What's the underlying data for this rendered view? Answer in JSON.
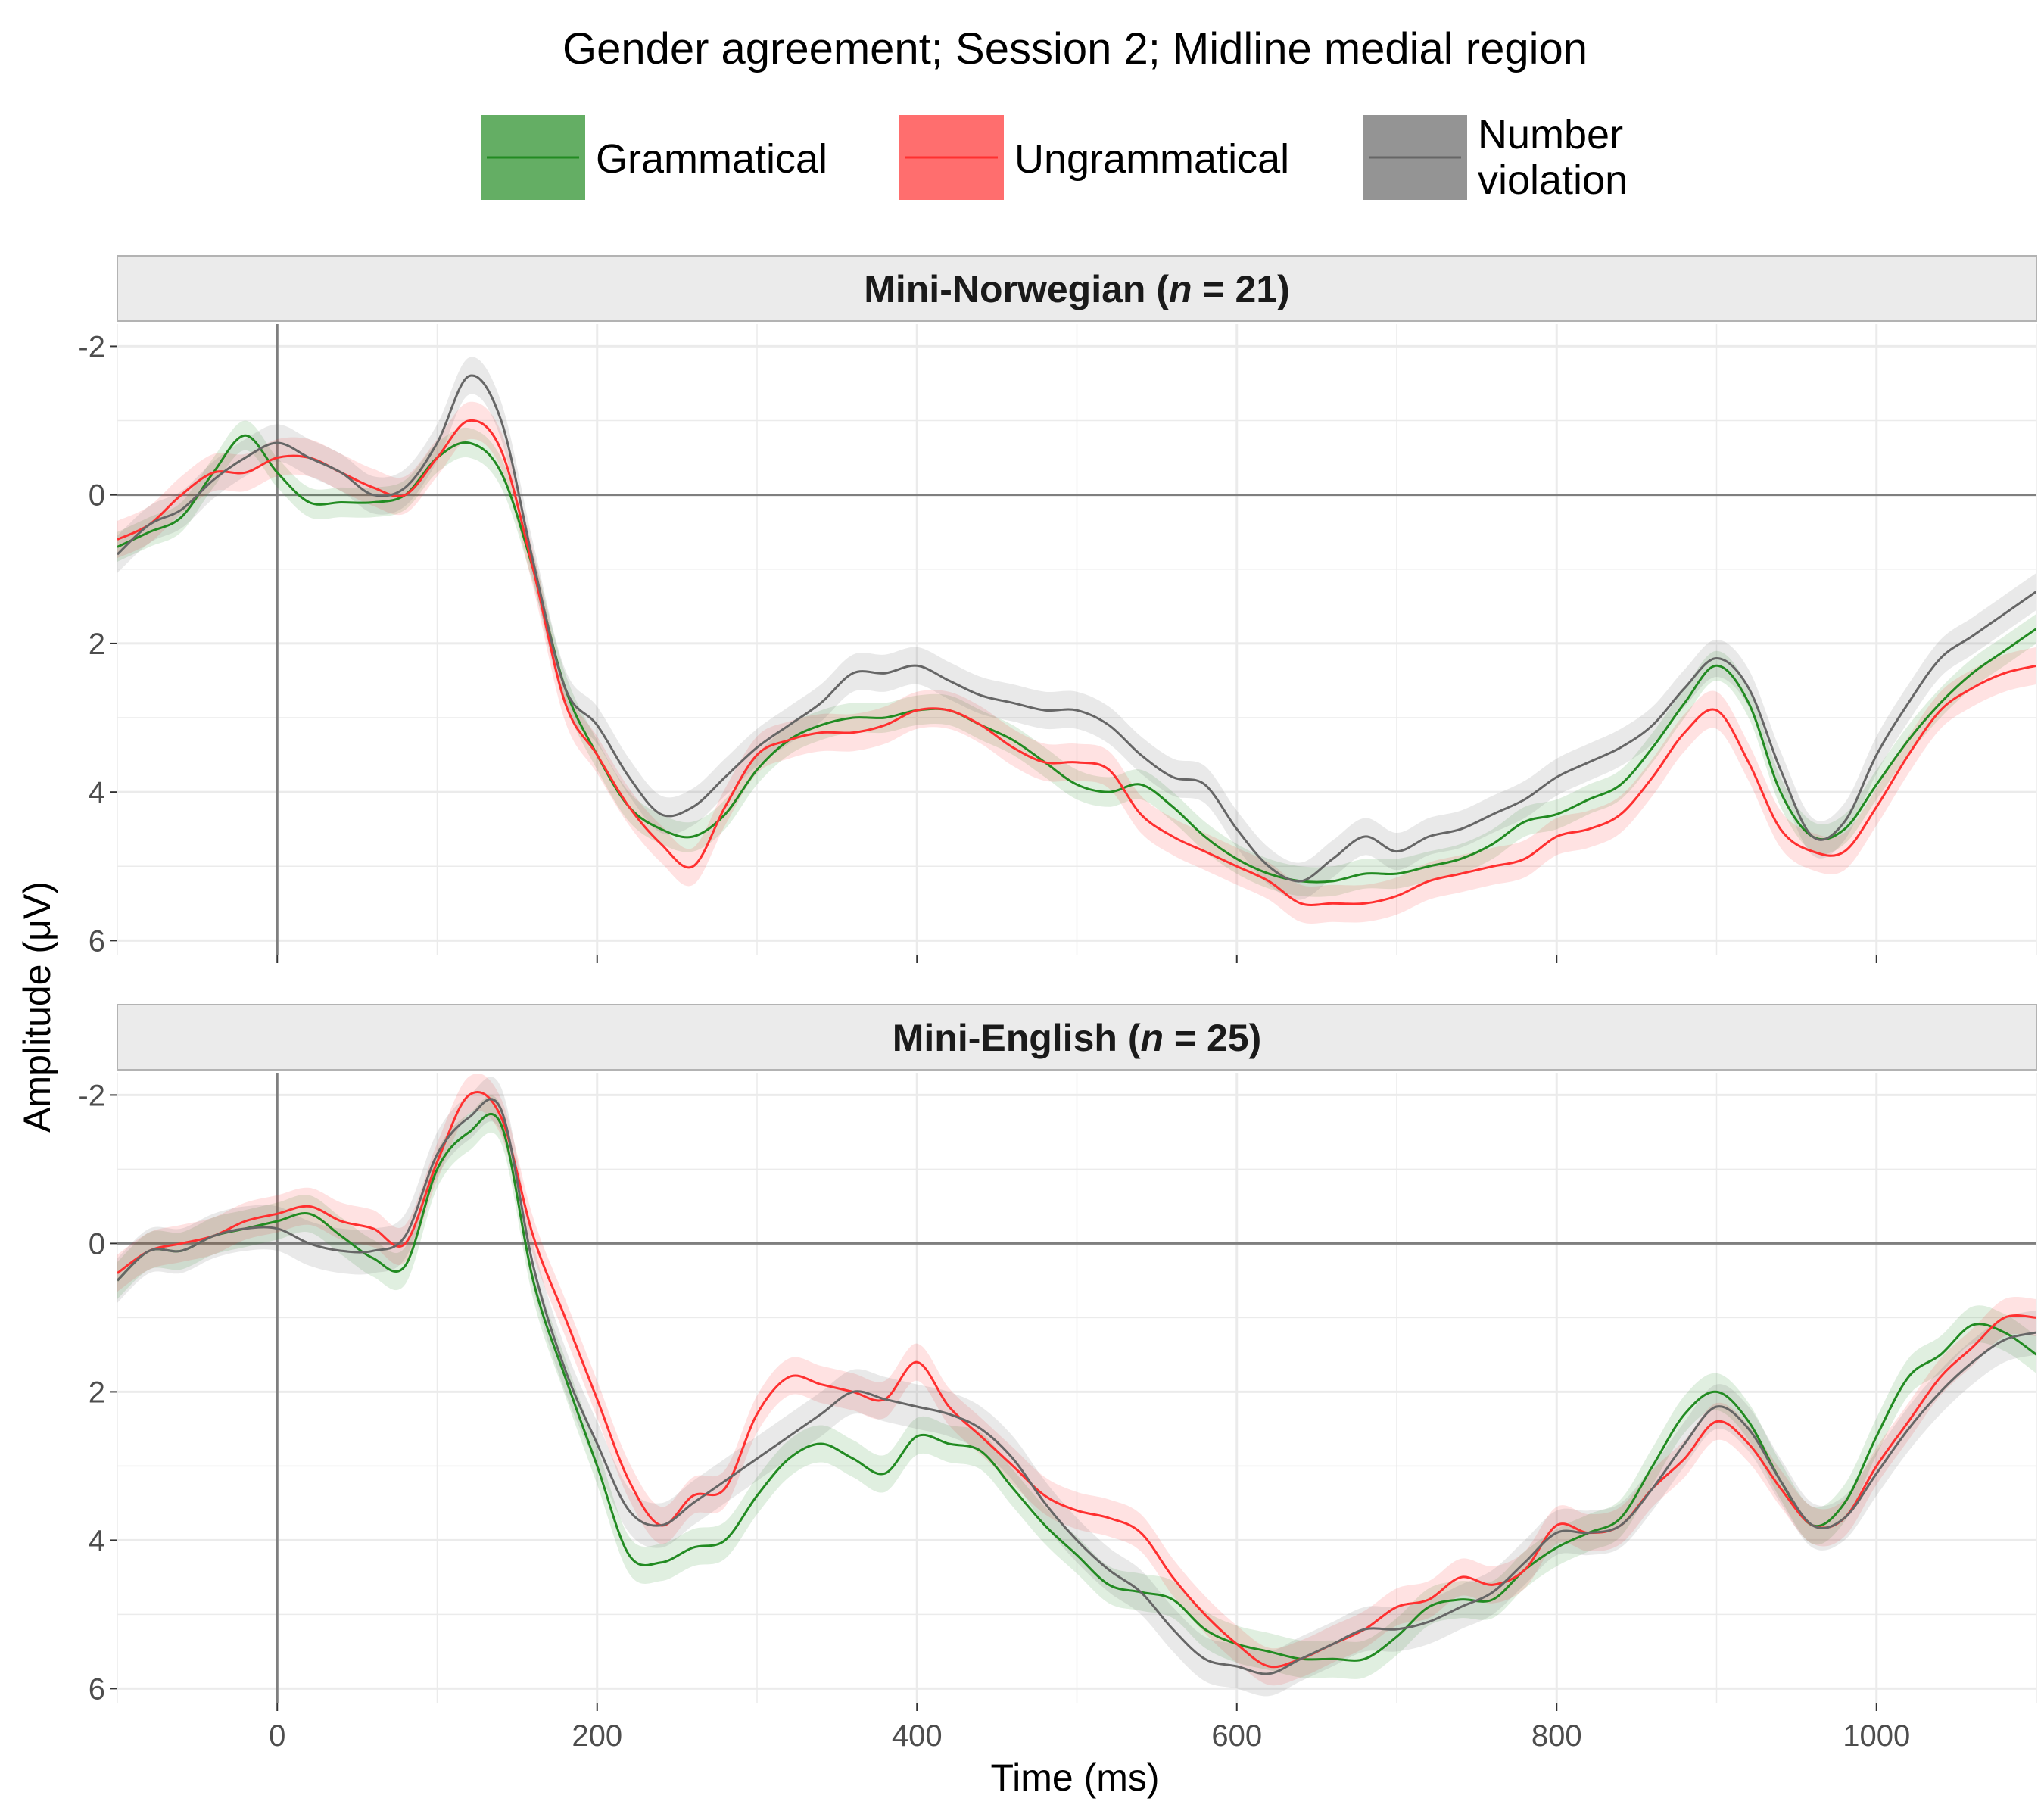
{
  "chart_data": {
    "type": "line",
    "title": "Gender agreement; Session 2; Midline medial region",
    "xlabel": "Time (ms)",
    "ylabel": "Amplitude (μV)",
    "xlim": [
      -100,
      1100
    ],
    "ylim": [
      -2.3,
      6.2
    ],
    "y_reversed": true,
    "x_ticks": [
      0,
      200,
      400,
      600,
      800,
      1000
    ],
    "x_tick_labels": [
      "0",
      "200",
      "400",
      "600",
      "800",
      "1000"
    ],
    "y_ticks": [
      -2,
      0,
      2,
      4,
      6
    ],
    "y_tick_labels": [
      "-2",
      "0",
      "2",
      "4",
      "6"
    ],
    "grid": true,
    "legend_position": "top",
    "legend": [
      {
        "key": "grammatical",
        "label": "Grammatical",
        "color": "#228B22"
      },
      {
        "key": "ungrammatical",
        "label": "Ungrammatical",
        "color": "#FF3030"
      },
      {
        "key": "number_violation",
        "label": "Number violation",
        "label_lines": [
          "Number",
          "violation"
        ],
        "color": "#666666"
      }
    ],
    "panels": [
      {
        "title_parts": [
          "Mini-Norwegian (",
          "n",
          " = 21)"
        ],
        "x": [
          -100,
          -80,
          -60,
          -40,
          -20,
          0,
          20,
          40,
          60,
          80,
          100,
          120,
          140,
          160,
          180,
          200,
          220,
          240,
          260,
          280,
          300,
          320,
          340,
          360,
          380,
          400,
          420,
          440,
          460,
          480,
          500,
          520,
          540,
          560,
          580,
          600,
          620,
          640,
          660,
          680,
          700,
          720,
          740,
          760,
          780,
          800,
          820,
          840,
          860,
          880,
          900,
          920,
          940,
          960,
          980,
          1000,
          1020,
          1040,
          1060,
          1080,
          1100
        ],
        "series": [
          {
            "key": "grammatical",
            "values": [
              0.7,
              0.5,
              0.3,
              -0.3,
              -0.8,
              -0.3,
              0.1,
              0.1,
              0.1,
              0.0,
              -0.5,
              -0.7,
              -0.3,
              1.0,
              2.6,
              3.5,
              4.2,
              4.5,
              4.6,
              4.3,
              3.7,
              3.3,
              3.1,
              3.0,
              3.0,
              2.9,
              2.9,
              3.1,
              3.3,
              3.6,
              3.9,
              4.0,
              3.9,
              4.2,
              4.6,
              4.9,
              5.1,
              5.2,
              5.2,
              5.1,
              5.1,
              5.0,
              4.9,
              4.7,
              4.4,
              4.3,
              4.1,
              3.9,
              3.4,
              2.8,
              2.3,
              2.8,
              4.0,
              4.6,
              4.5,
              3.9,
              3.3,
              2.8,
              2.4,
              2.1,
              1.8
            ],
            "band": 0.2
          },
          {
            "key": "ungrammatical",
            "values": [
              0.6,
              0.4,
              0.0,
              -0.3,
              -0.3,
              -0.5,
              -0.5,
              -0.3,
              -0.1,
              0.0,
              -0.5,
              -1.0,
              -0.6,
              1.0,
              2.8,
              3.5,
              4.2,
              4.7,
              5.0,
              4.2,
              3.5,
              3.3,
              3.2,
              3.2,
              3.1,
              2.9,
              2.9,
              3.1,
              3.4,
              3.6,
              3.6,
              3.7,
              4.3,
              4.6,
              4.8,
              5.0,
              5.2,
              5.5,
              5.5,
              5.5,
              5.4,
              5.2,
              5.1,
              5.0,
              4.9,
              4.6,
              4.5,
              4.3,
              3.8,
              3.2,
              2.9,
              3.6,
              4.5,
              4.8,
              4.8,
              4.2,
              3.5,
              2.9,
              2.6,
              2.4,
              2.3
            ],
            "band": 0.25
          },
          {
            "key": "number_violation",
            "values": [
              0.8,
              0.4,
              0.2,
              -0.2,
              -0.5,
              -0.7,
              -0.5,
              -0.3,
              0.0,
              -0.1,
              -0.7,
              -1.6,
              -1.0,
              0.9,
              2.6,
              3.1,
              3.8,
              4.3,
              4.2,
              3.8,
              3.4,
              3.1,
              2.8,
              2.4,
              2.4,
              2.3,
              2.5,
              2.7,
              2.8,
              2.9,
              2.9,
              3.1,
              3.5,
              3.8,
              3.9,
              4.5,
              5.0,
              5.2,
              4.9,
              4.6,
              4.8,
              4.6,
              4.5,
              4.3,
              4.1,
              3.8,
              3.6,
              3.4,
              3.1,
              2.6,
              2.2,
              2.6,
              3.7,
              4.6,
              4.4,
              3.5,
              2.8,
              2.2,
              1.9,
              1.6,
              1.3
            ],
            "band": 0.25
          }
        ]
      },
      {
        "title_parts": [
          "Mini-English (",
          "n",
          " = 25)"
        ],
        "x": [
          -100,
          -80,
          -60,
          -40,
          -20,
          0,
          20,
          40,
          60,
          80,
          100,
          120,
          140,
          160,
          180,
          200,
          220,
          240,
          260,
          280,
          300,
          320,
          340,
          360,
          380,
          400,
          420,
          440,
          460,
          480,
          500,
          520,
          540,
          560,
          580,
          600,
          620,
          640,
          660,
          680,
          700,
          720,
          740,
          760,
          780,
          800,
          820,
          840,
          860,
          880,
          900,
          920,
          940,
          960,
          980,
          1000,
          1020,
          1040,
          1060,
          1080,
          1100
        ],
        "series": [
          {
            "key": "grammatical",
            "values": [
              0.5,
              0.1,
              0.1,
              -0.1,
              -0.2,
              -0.3,
              -0.4,
              -0.1,
              0.2,
              0.3,
              -1.0,
              -1.5,
              -1.6,
              0.5,
              1.8,
              3.0,
              4.2,
              4.3,
              4.1,
              4.0,
              3.4,
              2.9,
              2.7,
              2.9,
              3.1,
              2.6,
              2.7,
              2.8,
              3.3,
              3.8,
              4.2,
              4.6,
              4.7,
              4.8,
              5.2,
              5.4,
              5.5,
              5.6,
              5.6,
              5.6,
              5.3,
              4.9,
              4.8,
              4.8,
              4.4,
              4.1,
              3.9,
              3.7,
              3.0,
              2.3,
              2.0,
              2.4,
              3.2,
              3.8,
              3.5,
              2.6,
              1.8,
              1.5,
              1.1,
              1.2,
              1.5
            ],
            "band": 0.25
          },
          {
            "key": "ungrammatical",
            "values": [
              0.4,
              0.1,
              0.0,
              -0.1,
              -0.3,
              -0.4,
              -0.5,
              -0.3,
              -0.2,
              0.0,
              -1.1,
              -2.0,
              -1.7,
              -0.1,
              1.0,
              2.1,
              3.2,
              3.8,
              3.4,
              3.3,
              2.3,
              1.8,
              1.9,
              2.0,
              2.1,
              1.6,
              2.2,
              2.6,
              3.0,
              3.4,
              3.6,
              3.7,
              3.9,
              4.5,
              5.0,
              5.4,
              5.7,
              5.6,
              5.4,
              5.2,
              4.9,
              4.8,
              4.5,
              4.6,
              4.4,
              3.8,
              3.9,
              3.8,
              3.3,
              2.9,
              2.4,
              2.7,
              3.3,
              3.8,
              3.7,
              3.0,
              2.4,
              1.8,
              1.4,
              1.0,
              1.0
            ],
            "band": 0.25
          },
          {
            "key": "number_violation",
            "values": [
              0.5,
              0.1,
              0.1,
              -0.1,
              -0.2,
              -0.2,
              0.0,
              0.1,
              0.1,
              -0.1,
              -1.2,
              -1.7,
              -1.8,
              0.3,
              1.7,
              2.7,
              3.6,
              3.8,
              3.5,
              3.2,
              2.9,
              2.6,
              2.3,
              2.0,
              2.1,
              2.2,
              2.3,
              2.5,
              2.9,
              3.5,
              4.0,
              4.4,
              4.7,
              5.2,
              5.6,
              5.7,
              5.8,
              5.6,
              5.4,
              5.2,
              5.2,
              5.1,
              4.9,
              4.7,
              4.3,
              3.9,
              3.9,
              3.8,
              3.3,
              2.7,
              2.2,
              2.5,
              3.2,
              3.8,
              3.7,
              3.1,
              2.5,
              2.0,
              1.6,
              1.3,
              1.2
            ],
            "band": 0.3
          }
        ]
      }
    ]
  }
}
